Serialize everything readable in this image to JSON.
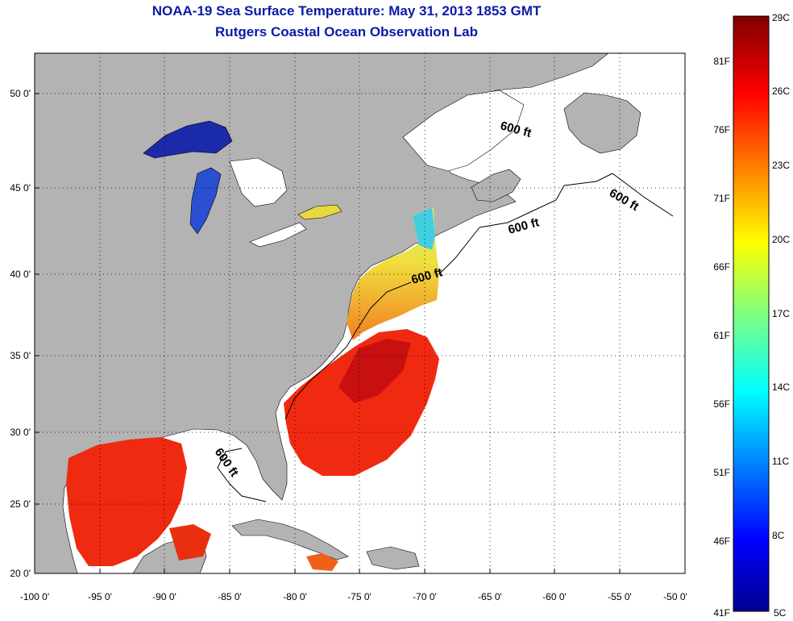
{
  "title_line1": "NOAA-19 Sea Surface Temperature:  May 31, 2013 1853 GMT",
  "title_line2": "Rutgers Coastal Ocean Observation Lab",
  "map": {
    "lon_ticks": [
      "-100 0'",
      "-95 0'",
      "-90 0'",
      "-85 0'",
      "-80 0'",
      "-75 0'",
      "-70 0'",
      "-65 0'",
      "-60 0'",
      "-55 0'",
      "-50 0'"
    ],
    "lat_ticks": [
      "50 0'",
      "45 0'",
      "40 0'",
      "35 0'",
      "30 0'",
      "25 0'",
      "20 0'"
    ],
    "contour_labels": [
      "600 ft",
      "600 ft",
      "600 ft",
      "600 ft",
      "600 ft"
    ],
    "colors": {
      "land": "#b3b3b3",
      "ocean_nodata": "#ffffff"
    }
  },
  "colorbar": {
    "celsius": [
      "29C",
      "26C",
      "23C",
      "20C",
      "17C",
      "14C",
      "11C",
      "8C",
      "5C"
    ],
    "fahrenheit": [
      "81F",
      "76F",
      "71F",
      "66F",
      "61F",
      "56F",
      "51F",
      "46F",
      "41F"
    ]
  }
}
